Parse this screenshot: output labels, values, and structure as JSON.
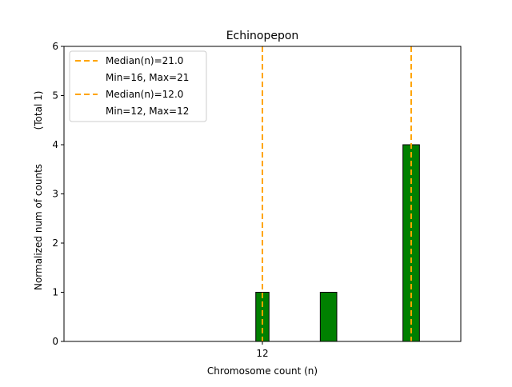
{
  "chart_data": {
    "type": "bar",
    "title": "Echinopepon",
    "xlabel": "Chromosome count (n)",
    "ylabel": "Normalized num of counts",
    "ylabel_note": "(Total 1)",
    "xlim": [
      0,
      24
    ],
    "ylim": [
      0,
      6
    ],
    "xticks": [
      {
        "value": 12,
        "label": "12"
      }
    ],
    "yticks": [
      {
        "value": 0,
        "label": "0"
      },
      {
        "value": 1,
        "label": "1"
      },
      {
        "value": 2,
        "label": "2"
      },
      {
        "value": 3,
        "label": "3"
      },
      {
        "value": 4,
        "label": "4"
      },
      {
        "value": 5,
        "label": "5"
      },
      {
        "value": 6,
        "label": "6"
      }
    ],
    "bars": [
      {
        "x_start": 11.6,
        "x_end": 12.4,
        "value": 1
      },
      {
        "x_start": 15.5,
        "x_end": 16.5,
        "value": 1
      },
      {
        "x_start": 20.5,
        "x_end": 21.5,
        "value": 4
      }
    ],
    "bar_color": "#008000",
    "median_lines": [
      {
        "x": 21,
        "label": "Median(n)=21.0",
        "range_label": "Min=16, Max=21"
      },
      {
        "x": 12,
        "label": "Median(n)=12.0",
        "range_label": "Min=12, Max=12"
      }
    ],
    "median_color": "#FFA500",
    "grid": false,
    "legend_position": "top-left"
  }
}
